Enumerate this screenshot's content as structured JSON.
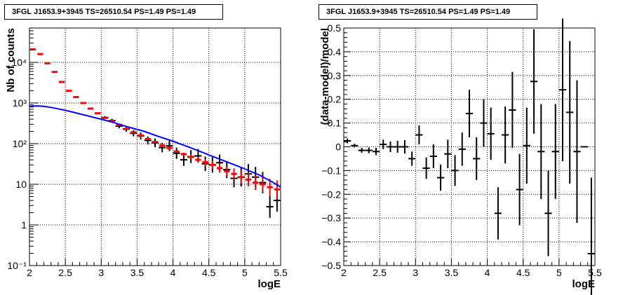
{
  "chart_data": [
    {
      "type": "scatter",
      "title": "3FGL J1653.9+3945 TS=26510.54 PS=1.49 PS=1.49",
      "xlabel": "logE",
      "ylabel": "Nb of counts",
      "xlim": [
        2,
        5.5
      ],
      "ylim": [
        0.1,
        70000
      ],
      "yscale": "log",
      "grid": true,
      "x_ticks": [
        "2",
        "2.5",
        "3",
        "3.5",
        "4",
        "4.5",
        "5",
        "5.5"
      ],
      "y_ticks": [
        "10⁻¹",
        "1",
        "10",
        "10²",
        "10³",
        "10⁴"
      ],
      "series": [
        {
          "style": "black points with error bars",
          "color": "#000000",
          "x": [
            3.05,
            3.15,
            3.25,
            3.35,
            3.45,
            3.55,
            3.65,
            3.75,
            3.85,
            3.95,
            4.05,
            4.15,
            4.25,
            4.35,
            4.45,
            4.55,
            4.65,
            4.75,
            4.85,
            4.95,
            5.05,
            5.15,
            5.25,
            5.35,
            5.45
          ],
          "y": [
            440,
            370,
            270,
            230,
            180,
            155,
            120,
            105,
            80,
            88,
            58,
            40,
            48,
            50,
            32,
            30,
            34,
            23,
            14,
            15,
            18,
            15,
            11,
            2.8,
            4.0
          ]
        },
        {
          "style": "red model histogram",
          "color": "#ff0000",
          "x": [
            2.05,
            2.15,
            2.25,
            2.35,
            2.45,
            2.55,
            2.65,
            2.75,
            2.85,
            2.95,
            3.05,
            3.15,
            3.25,
            3.35,
            3.45,
            3.55,
            3.65,
            3.75,
            3.85,
            3.95,
            4.05,
            4.15,
            4.25,
            4.35,
            4.45,
            4.55,
            4.65,
            4.75,
            4.85,
            4.95,
            5.05,
            5.15,
            5.25,
            5.35,
            5.45
          ],
          "y": [
            21000,
            16000,
            9500,
            5800,
            3300,
            2000,
            1400,
            1000,
            730,
            560,
            430,
            360,
            290,
            230,
            190,
            160,
            130,
            110,
            90,
            78,
            64,
            55,
            47,
            40,
            35,
            30,
            25,
            21,
            18,
            15,
            13,
            11,
            10,
            8.5,
            7.5
          ]
        },
        {
          "style": "blue model line",
          "color": "#0000ff",
          "x": [
            2.0,
            2.1,
            2.2,
            2.3,
            2.4,
            2.5,
            2.6,
            2.7,
            2.8,
            2.9,
            3.0,
            3.2,
            3.4,
            3.6,
            3.8,
            4.0,
            4.2,
            4.4,
            4.6,
            4.8,
            5.0,
            5.2,
            5.4,
            5.5
          ],
          "y": [
            820,
            850,
            830,
            780,
            720,
            660,
            600,
            540,
            490,
            440,
            400,
            320,
            250,
            200,
            150,
            115,
            85,
            62,
            45,
            33,
            24,
            17,
            11,
            8.5
          ]
        }
      ]
    },
    {
      "type": "scatter",
      "title": "3FGL J1653.9+3945 TS=26510.54 PS=1.49 PS=1.49",
      "xlabel": "logE",
      "ylabel": "(data-model)/model",
      "xlim": [
        2,
        5.5
      ],
      "ylim": [
        -0.5,
        0.5
      ],
      "grid": true,
      "x_ticks": [
        "2",
        "2.5",
        "3",
        "3.5",
        "4",
        "4.5",
        "5",
        "5.5"
      ],
      "y_ticks": [
        "−0.5",
        "−0.4",
        "−0.3",
        "−0.2",
        "−0.1",
        "0",
        "0.1",
        "0.2",
        "0.3",
        "0.4",
        "0.5"
      ],
      "series": [
        {
          "style": "black points with error bars",
          "color": "#000000",
          "x": [
            2.05,
            2.15,
            2.25,
            2.35,
            2.45,
            2.55,
            2.65,
            2.75,
            2.85,
            2.95,
            3.05,
            3.15,
            3.25,
            3.35,
            3.45,
            3.55,
            3.65,
            3.75,
            3.85,
            3.95,
            4.05,
            4.15,
            4.25,
            4.35,
            4.45,
            4.55,
            4.65,
            4.75,
            4.85,
            4.95,
            5.05,
            5.15,
            5.25,
            5.35,
            5.45
          ],
          "y": [
            0.025,
            0.005,
            -0.015,
            -0.015,
            -0.02,
            0.01,
            0.0,
            0.0,
            0.0,
            -0.05,
            0.05,
            -0.09,
            -0.04,
            -0.13,
            -0.03,
            -0.1,
            -0.01,
            0.14,
            -0.05,
            0.1,
            0.055,
            -0.28,
            0.05,
            0.155,
            -0.18,
            0.005,
            0.275,
            -0.02,
            -0.28,
            -0.02,
            0.24,
            0.145,
            -0.02,
            0.0,
            -0.45
          ],
          "err": [
            0.01,
            0.008,
            0.01,
            0.012,
            0.015,
            0.02,
            0.022,
            0.025,
            0.028,
            0.03,
            0.04,
            0.045,
            0.05,
            0.055,
            0.06,
            0.065,
            0.07,
            0.1,
            0.09,
            0.1,
            0.11,
            0.11,
            0.12,
            0.16,
            0.15,
            0.16,
            0.22,
            0.2,
            0.18,
            0.2,
            0.3,
            0.3,
            0.3,
            0.0,
            0.32
          ]
        }
      ]
    }
  ]
}
